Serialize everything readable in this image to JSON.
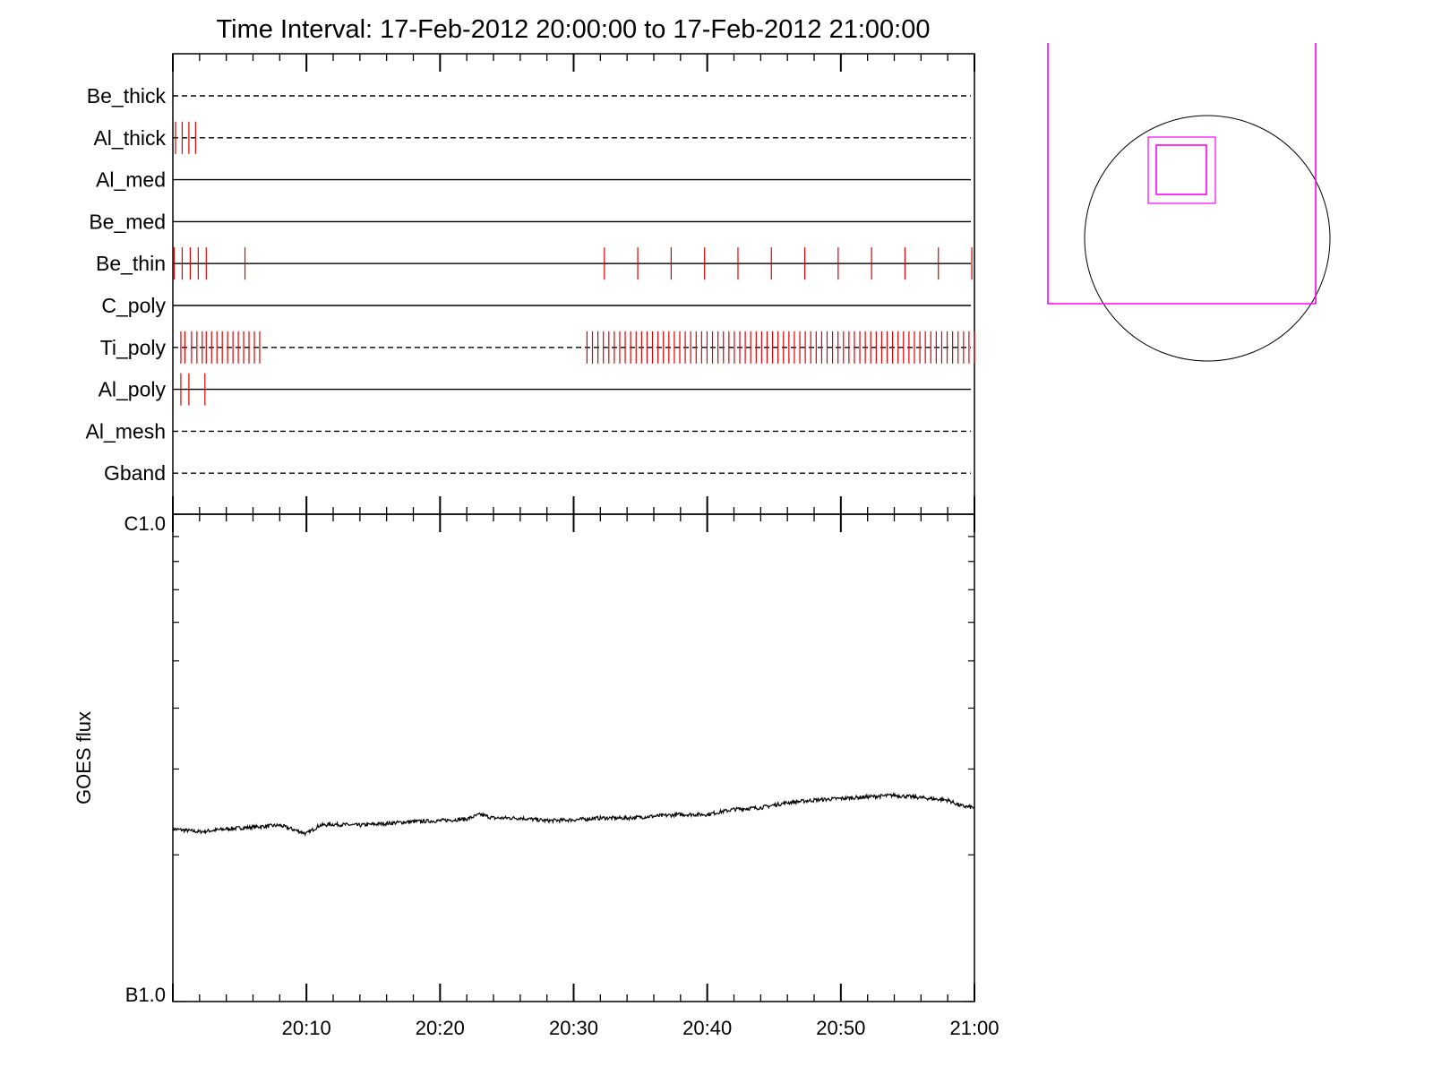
{
  "chart_data": [
    {
      "type": "timeline",
      "title": "Time Interval: 17-Feb-2012 20:00:00 to 17-Feb-2012 21:00:00",
      "x_range": [
        "20:00",
        "21:00"
      ],
      "x_major_every_min": 10,
      "x_minor_every_min": 2,
      "colors": {
        "marks": "#e00000",
        "axis": "#000000"
      },
      "filters": [
        {
          "label": "Be_thick",
          "style": "dashed",
          "marks": []
        },
        {
          "label": "Al_thick",
          "style": "dashed",
          "marks": [
            0.2,
            0.7,
            1.2,
            1.7
          ]
        },
        {
          "label": "Al_med",
          "style": "solid",
          "marks": []
        },
        {
          "label": "Be_med",
          "style": "solid",
          "marks": []
        },
        {
          "label": "Be_thin",
          "style": "solid",
          "marks": [
            0.1,
            0.7,
            1.3,
            1.9,
            2.5,
            5.4,
            32.3,
            34.8,
            37.3,
            39.8,
            42.3,
            44.8,
            47.3,
            49.8,
            52.3,
            54.8,
            57.3,
            59.8
          ]
        },
        {
          "label": "C_poly",
          "style": "solid",
          "marks": []
        },
        {
          "label": "Ti_poly",
          "style": "dashed",
          "marks": [
            0.6,
            0.9,
            1.4,
            1.8,
            2.2,
            2.5,
            2.9,
            3.3,
            3.7,
            4.1,
            4.5,
            4.9,
            5.3,
            5.7,
            6.1,
            6.5
          ]
        },
        {
          "label": "Al_poly",
          "style": "solid",
          "marks": [
            0.6,
            1.2,
            2.4
          ]
        },
        {
          "label": "Al_mesh",
          "style": "dashed",
          "marks": []
        },
        {
          "label": "Gband",
          "style": "dashed",
          "marks": []
        }
      ],
      "dense_block": {
        "filter": "Ti_poly",
        "from_min": 31.0,
        "to_min": 60.0,
        "count": 72
      }
    },
    {
      "type": "line",
      "ylabel": "GOES flux",
      "y_scale": "log",
      "y_tick_labels": [
        "C1.0",
        "B1.0"
      ],
      "y_top_label": "C1.0",
      "y_bottom_label": "B1.0",
      "x_tick_labels": [
        "20:10",
        "20:20",
        "20:30",
        "20:40",
        "20:50",
        "21:00"
      ],
      "series": [
        {
          "x_min": [
            0,
            2,
            4,
            6,
            8,
            10,
            11,
            12,
            14,
            16,
            18,
            20,
            22,
            23,
            24,
            26,
            28,
            30,
            32,
            34,
            36,
            38,
            40,
            42,
            44,
            46,
            48,
            50,
            52,
            54,
            56,
            58,
            59,
            60
          ],
          "flux_e7": [
            2.26,
            2.23,
            2.26,
            2.28,
            2.3,
            2.21,
            2.3,
            2.31,
            2.3,
            2.32,
            2.34,
            2.35,
            2.37,
            2.42,
            2.38,
            2.38,
            2.35,
            2.36,
            2.38,
            2.38,
            2.4,
            2.42,
            2.42,
            2.48,
            2.5,
            2.56,
            2.59,
            2.61,
            2.63,
            2.65,
            2.62,
            2.59,
            2.52,
            2.5
          ]
        }
      ]
    }
  ],
  "context_image": {
    "colors": {
      "circle": "#000000",
      "box": "#ff00ff"
    }
  }
}
